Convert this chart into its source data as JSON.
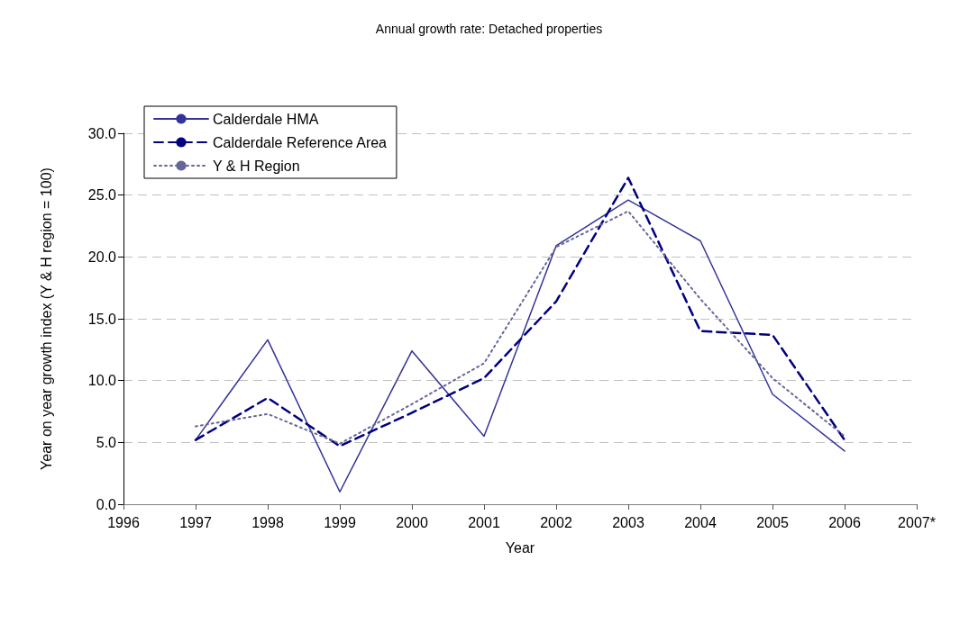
{
  "chart_data": {
    "type": "line",
    "title": "Annual growth rate: Detached properties",
    "xlabel": "Year",
    "ylabel": "Year on year growth index (Y & H region = 100)",
    "categories": [
      "1996",
      "1997",
      "1998",
      "1999",
      "2000",
      "2001",
      "2002",
      "2003",
      "2004",
      "2005",
      "2006",
      "2007*"
    ],
    "series": [
      {
        "name": "Calderdale HMA",
        "color": "#333399",
        "line_style": "solid",
        "values": [
          null,
          5.2,
          13.3,
          1.0,
          12.4,
          5.5,
          20.9,
          24.6,
          21.3,
          8.9,
          4.3,
          null
        ]
      },
      {
        "name": "Calderdale Reference Area",
        "color": "#000080",
        "line_style": "dashed",
        "values": [
          null,
          5.2,
          8.6,
          4.7,
          7.4,
          10.2,
          16.4,
          26.4,
          14.0,
          13.7,
          5.2,
          null
        ]
      },
      {
        "name": "Y & H Region",
        "color": "#666699",
        "line_style": "dotted",
        "values": [
          null,
          6.3,
          7.3,
          4.9,
          8.1,
          11.4,
          20.8,
          23.7,
          16.6,
          10.2,
          5.5,
          null
        ]
      }
    ],
    "ylim": [
      0,
      30
    ],
    "yticks": [
      {
        "value": 0,
        "label": "0.0"
      },
      {
        "value": 5,
        "label": "5.0"
      },
      {
        "value": 10,
        "label": "10.0"
      },
      {
        "value": 15,
        "label": "15.0"
      },
      {
        "value": 20,
        "label": "20.0"
      },
      {
        "value": 25,
        "label": "25.0"
      },
      {
        "value": 30,
        "label": "30.0"
      }
    ],
    "grid": "y",
    "legend": "top left",
    "marker": "none"
  }
}
